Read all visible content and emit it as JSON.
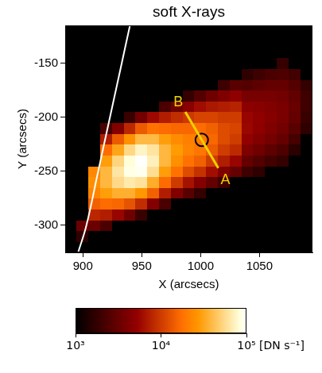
{
  "chart_data": {
    "type": "heatmap",
    "title": "soft X-rays",
    "x_label": "X (arcsecs)",
    "y_label": "Y (arcsecs)",
    "xlim": [
      885,
      1095
    ],
    "ylim": [
      -325,
      -115
    ],
    "xticks": [
      900,
      950,
      1000,
      1050
    ],
    "yticks": [
      -300,
      -250,
      -200,
      -150
    ],
    "grid": false,
    "cells": {
      "x": [
        890,
        900,
        910,
        920,
        930,
        940,
        950,
        960,
        970,
        980,
        990,
        1000,
        1010,
        1020,
        1030,
        1040,
        1050,
        1060,
        1070,
        1080,
        1090
      ],
      "y": [
        -320,
        -310,
        -300,
        -290,
        -280,
        -270,
        -260,
        -250,
        -240,
        -230,
        -220,
        -210,
        -200,
        -190,
        -180,
        -170,
        -160,
        -150,
        -140,
        -130,
        -120
      ],
      "values": [
        [
          1000,
          1000,
          1000,
          1000,
          1000,
          1000,
          1000,
          1000,
          1000,
          1000,
          1000,
          1000,
          1000,
          1000,
          1000,
          1000,
          1000,
          1000,
          1000,
          1000,
          1000
        ],
        [
          1000,
          1700,
          1000,
          1000,
          1000,
          1000,
          1000,
          1000,
          1000,
          1000,
          1000,
          1000,
          1000,
          1000,
          1000,
          1000,
          1000,
          1000,
          1000,
          1000,
          1000
        ],
        [
          1000,
          3300,
          3300,
          2300,
          1000,
          1000,
          1000,
          1000,
          1000,
          1000,
          1000,
          1000,
          1000,
          1000,
          1000,
          1000,
          1000,
          1000,
          1000,
          1000,
          1000
        ],
        [
          1000,
          1000,
          7900,
          7200,
          5500,
          3500,
          1900,
          1000,
          1000,
          1000,
          1000,
          1000,
          1000,
          1000,
          1000,
          1000,
          1000,
          1000,
          1000,
          1000,
          1000
        ],
        [
          1000,
          1000,
          15000,
          17000,
          16000,
          13000,
          8500,
          4400,
          2300,
          1000,
          1000,
          1000,
          1000,
          1000,
          1000,
          1000,
          1000,
          1000,
          1000,
          1000,
          1000
        ],
        [
          1000,
          1000,
          22000,
          29000,
          35000,
          35000,
          27000,
          15000,
          7200,
          4200,
          2700,
          1800,
          1000,
          1000,
          1000,
          1000,
          1000,
          1000,
          1000,
          1000,
          1000
        ],
        [
          1000,
          1000,
          25000,
          38000,
          55000,
          66000,
          60000,
          34000,
          17000,
          9900,
          6400,
          4400,
          3000,
          2000,
          1000,
          1000,
          1000,
          1000,
          1000,
          1000,
          1000
        ],
        [
          1000,
          1000,
          23000,
          38000,
          63000,
          88000,
          92000,
          58000,
          29000,
          18000,
          12000,
          9000,
          6100,
          4200,
          3100,
          2000,
          1700,
          1000,
          1000,
          1000,
          1000
        ],
        [
          1000,
          1000,
          1000,
          29000,
          52000,
          82000,
          98000,
          71000,
          38000,
          25000,
          18000,
          15000,
          10000,
          7200,
          5500,
          3100,
          2500,
          2100,
          1800,
          1000,
          1000
        ],
        [
          1000,
          1000,
          1000,
          17000,
          31000,
          54000,
          74000,
          62000,
          38000,
          28000,
          22000,
          19000,
          14000,
          10000,
          8300,
          4200,
          3500,
          2900,
          2400,
          1600,
          1000
        ],
        [
          1000,
          1000,
          1000,
          7200,
          14000,
          25000,
          39000,
          39000,
          29000,
          24000,
          21000,
          20000,
          16000,
          12000,
          10000,
          5100,
          4300,
          3700,
          3100,
          2200,
          1000
        ],
        [
          1000,
          1000,
          1000,
          2300,
          4300,
          8100,
          14000,
          18000,
          17000,
          16000,
          16000,
          17000,
          15000,
          12000,
          11000,
          5600,
          4900,
          4200,
          3600,
          2700,
          1700
        ],
        [
          1000,
          1000,
          1000,
          1000,
          1000,
          1900,
          3600,
          5800,
          7200,
          8500,
          9700,
          11000,
          11000,
          10000,
          10000,
          5500,
          5000,
          4500,
          3900,
          3100,
          1900
        ],
        [
          1000,
          1000,
          1000,
          1000,
          1000,
          1000,
          1000,
          1000,
          2300,
          3400,
          4600,
          6000,
          6800,
          7200,
          7700,
          4800,
          4600,
          4300,
          3900,
          3200,
          2000
        ],
        [
          1000,
          1000,
          1000,
          1000,
          1000,
          1000,
          1000,
          1000,
          1000,
          1000,
          1800,
          2600,
          3500,
          4200,
          5000,
          3800,
          3800,
          3800,
          3600,
          3000,
          2000
        ],
        [
          1000,
          1000,
          1000,
          1000,
          1000,
          1000,
          1000,
          1000,
          1000,
          1000,
          1000,
          1000,
          1000,
          2000,
          2700,
          2600,
          2900,
          3100,
          3100,
          2600,
          1800
        ],
        [
          1000,
          1000,
          1000,
          1000,
          1000,
          1000,
          1000,
          1000,
          1000,
          1000,
          1000,
          1000,
          1000,
          1000,
          1000,
          1700,
          2000,
          2300,
          2400,
          2100,
          1000
        ],
        [
          1000,
          1000,
          1000,
          1000,
          1000,
          1000,
          1000,
          1000,
          1000,
          1000,
          1000,
          1000,
          1000,
          1000,
          1000,
          1000,
          1000,
          1000,
          1800,
          1000,
          1000
        ],
        [
          1000,
          1000,
          1000,
          1000,
          1000,
          1000,
          1000,
          1000,
          1000,
          1000,
          1000,
          1000,
          1000,
          1000,
          1000,
          1000,
          1000,
          1000,
          1000,
          1000,
          1000
        ],
        [
          1000,
          1000,
          1000,
          1000,
          1000,
          1000,
          1000,
          1000,
          1000,
          1000,
          1000,
          1000,
          1000,
          1000,
          1000,
          1000,
          1000,
          1000,
          1000,
          1000,
          1000
        ],
        [
          1000,
          1000,
          1000,
          1000,
          1000,
          1000,
          1000,
          1000,
          1000,
          1000,
          1000,
          1000,
          1000,
          1000,
          1000,
          1000,
          1000,
          1000,
          1000,
          1000,
          1000
        ]
      ]
    },
    "colorbar": {
      "label": "[DN s⁻¹]",
      "range": [
        1000,
        100000
      ],
      "log": true,
      "ticks": [
        {
          "value": 1000,
          "label": "10³"
        },
        {
          "value": 10000,
          "label": "10⁴"
        },
        {
          "value": 100000,
          "label": "10⁵"
        }
      ]
    },
    "limb": {
      "x": [
        896,
        903,
        913,
        923,
        933,
        940
      ],
      "y": [
        -325,
        -300,
        -250,
        -200,
        -150,
        -115
      ],
      "color": "#ffffff"
    },
    "line": {
      "x": [
        1015,
        987
      ],
      "y": [
        -247,
        -195
      ],
      "color": "#f0d000"
    },
    "circle": {
      "x": 1001,
      "y": -221,
      "color": "#000000",
      "marker": "circle"
    },
    "annotations": [
      {
        "text": "B",
        "x": 981,
        "y": -186
      },
      {
        "text": "A",
        "x": 1021,
        "y": -258
      }
    ]
  }
}
